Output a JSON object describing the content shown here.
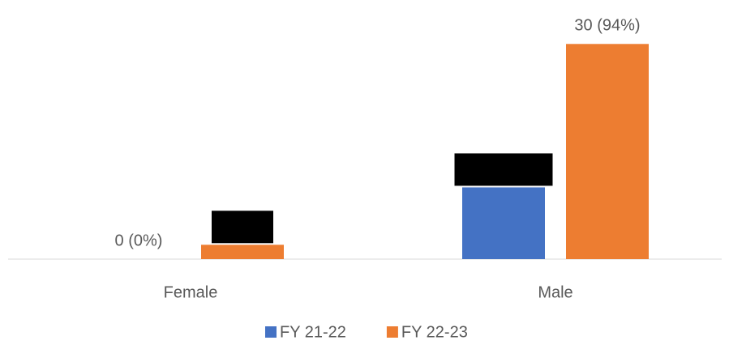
{
  "chart_data": {
    "type": "bar",
    "categories": [
      "Female",
      "Male"
    ],
    "series": [
      {
        "name": "FY 21-22",
        "color": "#4472c4",
        "values": [
          0,
          10
        ],
        "value_labels": [
          "0 (0%)",
          null
        ]
      },
      {
        "name": "FY 22-23",
        "color": "#ed7d31",
        "values": [
          2,
          30
        ],
        "value_labels": [
          null,
          "30 (94%)"
        ]
      }
    ],
    "ylim": [
      0,
      35
    ],
    "grid": false,
    "legend": "bottom"
  }
}
